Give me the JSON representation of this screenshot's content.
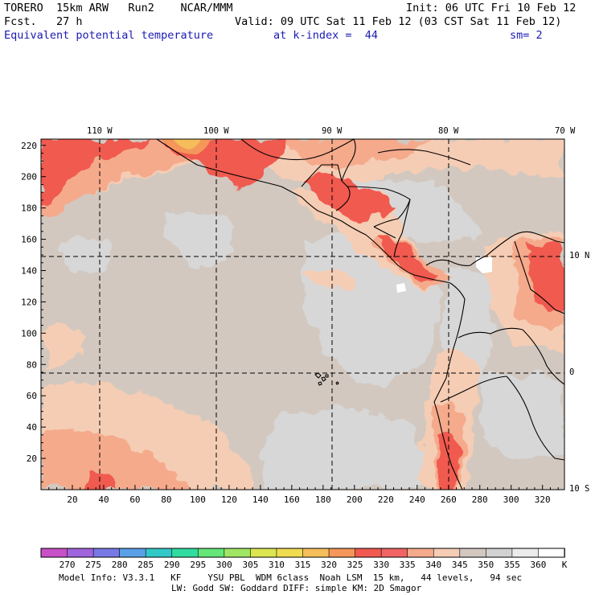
{
  "header": {
    "model": "TORERO  15km ARW   Run2    NCAR/MMM",
    "init": "Init: 06 UTC Fri 10 Feb 12",
    "fcst": "Fcst.   27 h",
    "valid": "Valid: 09 UTC Sat 11 Feb 12 (03 CST Sat 11 Feb 12)",
    "field": "Equivalent potential temperature",
    "level": "at k-index =  44",
    "smooth": "sm= 2"
  },
  "map": {
    "lon_labels": [
      "110 W",
      "100 W",
      "90 W",
      "80 W",
      "70 W"
    ],
    "lat_labels": [
      "10 N",
      "0",
      "10 S"
    ],
    "x_ticks": [
      "20",
      "40",
      "60",
      "80",
      "100",
      "120",
      "140",
      "160",
      "180",
      "200",
      "220",
      "240",
      "260",
      "280",
      "300",
      "320"
    ],
    "y_ticks": [
      "20",
      "40",
      "60",
      "80",
      "100",
      "120",
      "140",
      "160",
      "180",
      "200",
      "220"
    ]
  },
  "colorbar": {
    "labels": [
      "270",
      "275",
      "280",
      "285",
      "290",
      "295",
      "300",
      "305",
      "310",
      "315",
      "320",
      "325",
      "330",
      "335",
      "340",
      "345",
      "350",
      "355",
      "360"
    ],
    "unit": "K",
    "colors": [
      "#c850c8",
      "#a064dc",
      "#7878e6",
      "#5aa0e6",
      "#32c8c8",
      "#32dca0",
      "#64e678",
      "#a0e664",
      "#dce650",
      "#f0dc50",
      "#f5be5a",
      "#f5965a",
      "#f05a50",
      "#f06464",
      "#f5aa8c",
      "#f5cdb4",
      "#d2c8c0",
      "#d2d2d2",
      "#ebebeb",
      "#ffffff"
    ]
  },
  "footer": {
    "line1": "Model Info: V3.3.1   KF     YSU PBL  WDM 6class  Noah LSM  15 km,   44 levels,   94 sec",
    "line2": "LW: Godd SW: Goddard DIFF: simple KM: 2D Smagor"
  }
}
